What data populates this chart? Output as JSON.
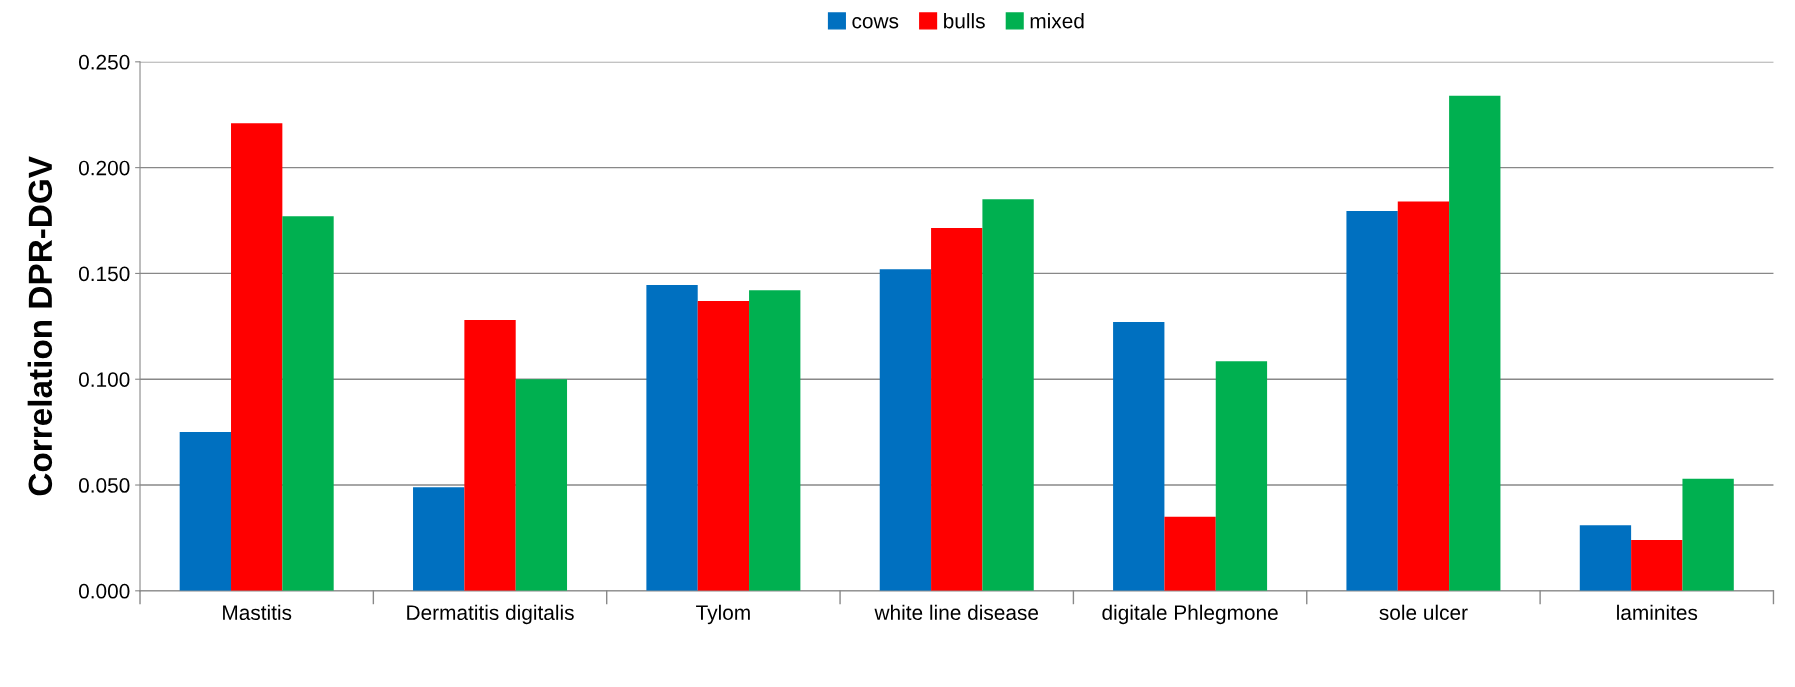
{
  "chart_data": {
    "type": "bar",
    "ylabel": "Correlation DPR-DGV",
    "categories": [
      "Mastitis",
      "Dermatitis digitalis",
      "Tylom",
      "white line disease",
      "digitale Phlegmone",
      "sole ulcer",
      "laminites"
    ],
    "series": [
      {
        "name": "cows",
        "color": "#0070c0",
        "values": [
          0.075,
          0.049,
          0.1445,
          0.152,
          0.127,
          0.1795,
          0.031
        ]
      },
      {
        "name": "bulls",
        "color": "#ff0000",
        "values": [
          0.221,
          0.128,
          0.137,
          0.1715,
          0.035,
          0.184,
          0.024
        ]
      },
      {
        "name": "mixed",
        "color": "#00b050",
        "values": [
          0.177,
          0.1,
          0.142,
          0.185,
          0.1085,
          0.234,
          0.053
        ]
      }
    ],
    "ylim": [
      0,
      0.25
    ],
    "yticks": [
      {
        "value": 0,
        "label": "0.000"
      },
      {
        "value": 0.05,
        "label": "0.050"
      },
      {
        "value": 0.1,
        "label": "0.100"
      },
      {
        "value": 0.15,
        "label": "0.150"
      },
      {
        "value": 0.2,
        "label": "0.200"
      },
      {
        "value": 0.25,
        "label": "0.250"
      }
    ],
    "grid": "y",
    "legend": "top"
  }
}
